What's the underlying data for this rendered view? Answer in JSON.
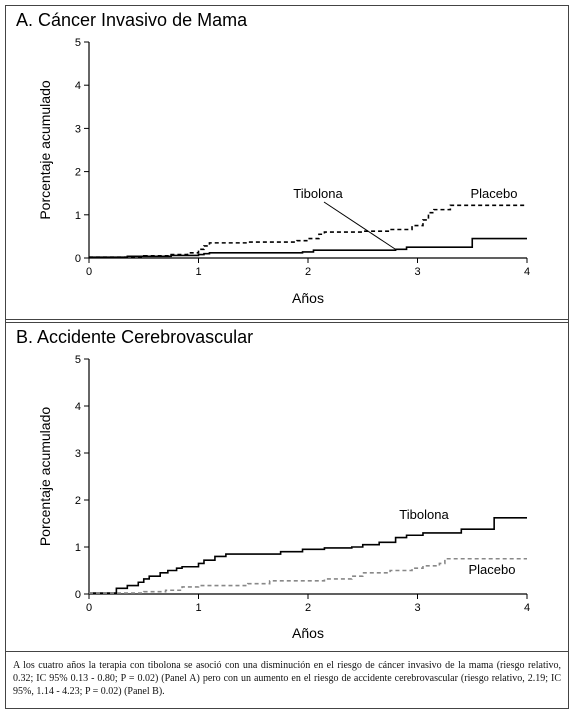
{
  "chart_data": [
    {
      "type": "line",
      "title": "A. Cáncer Invasivo de Mama",
      "xlabel": "Años",
      "ylabel": "Porcentaje acumulado",
      "xlim": [
        0,
        4
      ],
      "ylim": [
        0,
        5
      ],
      "xticks": [
        "0",
        "1",
        "2",
        "3",
        "4"
      ],
      "yticks": [
        "0",
        "1",
        "2",
        "3",
        "4",
        "5"
      ],
      "series": [
        {
          "name": "Tibolona",
          "style": "solid",
          "color": "#000000",
          "x": [
            0,
            0.35,
            0.75,
            1.0,
            1.05,
            1.1,
            1.95,
            2.05,
            2.8,
            2.9,
            3.5,
            4.0
          ],
          "y": [
            0.02,
            0.04,
            0.06,
            0.08,
            0.1,
            0.12,
            0.14,
            0.18,
            0.2,
            0.25,
            0.45,
            0.45
          ]
        },
        {
          "name": "Placebo",
          "style": "dashed",
          "color": "#000000",
          "x": [
            0,
            0.5,
            0.75,
            0.9,
            1.0,
            1.05,
            1.1,
            1.2,
            1.45,
            1.9,
            2.0,
            2.1,
            2.15,
            2.5,
            2.75,
            2.85,
            2.95,
            3.05,
            3.1,
            3.15,
            3.3,
            4.0
          ],
          "y": [
            0.02,
            0.05,
            0.08,
            0.12,
            0.2,
            0.28,
            0.35,
            0.35,
            0.37,
            0.4,
            0.45,
            0.55,
            0.6,
            0.62,
            0.66,
            0.66,
            0.75,
            0.88,
            1.05,
            1.12,
            1.22,
            1.22
          ]
        }
      ],
      "annotations": [
        {
          "text": "Tibolona",
          "arrow_to": [
            2.8,
            0.2
          ]
        },
        {
          "text": "Placebo"
        }
      ]
    },
    {
      "type": "line",
      "title": "B. Accidente Cerebrovascular",
      "xlabel": "Años",
      "ylabel": "Porcentaje acumulado",
      "xlim": [
        0,
        4
      ],
      "ylim": [
        0,
        5
      ],
      "xticks": [
        "0",
        "1",
        "2",
        "3",
        "4"
      ],
      "yticks": [
        "0",
        "1",
        "2",
        "3",
        "4",
        "5"
      ],
      "series": [
        {
          "name": "Tibolona",
          "style": "solid",
          "color": "#000000",
          "x": [
            0,
            0.25,
            0.35,
            0.45,
            0.5,
            0.55,
            0.65,
            0.72,
            0.8,
            0.85,
            1.0,
            1.05,
            1.15,
            1.25,
            1.75,
            1.95,
            2.15,
            2.4,
            2.5,
            2.65,
            2.8,
            2.9,
            3.05,
            3.4,
            3.6,
            3.7,
            4.0
          ],
          "y": [
            0.02,
            0.12,
            0.18,
            0.25,
            0.32,
            0.38,
            0.45,
            0.5,
            0.55,
            0.58,
            0.65,
            0.72,
            0.8,
            0.85,
            0.9,
            0.95,
            0.98,
            1.0,
            1.05,
            1.1,
            1.2,
            1.25,
            1.3,
            1.38,
            1.38,
            1.62,
            1.62
          ]
        },
        {
          "name": "Placebo",
          "style": "dashed",
          "color": "#888888",
          "x": [
            0,
            0.5,
            0.7,
            0.85,
            1.0,
            1.45,
            1.65,
            2.15,
            2.4,
            2.5,
            2.75,
            2.95,
            3.05,
            3.2,
            3.25,
            4.0
          ],
          "y": [
            0.02,
            0.05,
            0.08,
            0.15,
            0.18,
            0.22,
            0.28,
            0.32,
            0.38,
            0.45,
            0.5,
            0.55,
            0.6,
            0.65,
            0.75,
            0.75
          ]
        }
      ],
      "annotations": [
        {
          "text": "Tibolona"
        },
        {
          "text": "Placebo"
        }
      ]
    }
  ],
  "caption": "A los cuatro años la terapia con tibolona se asoció con una disminución en el riesgo de cáncer invasivo de la mama (riesgo relativo, 0.32; IC 95% 0.13 - 0.80; P = 0.02) (Panel A) pero con un aumento en el riesgo de accidente cerebrovascular (riesgo relativo, 2.19; IC 95%, 1.14 - 4.23; P = 0.02) (Panel B)."
}
